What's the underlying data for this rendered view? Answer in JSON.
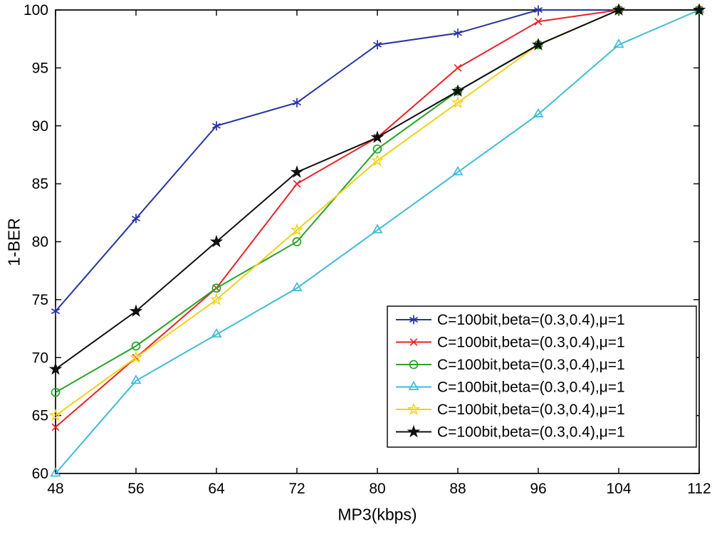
{
  "chart_data": {
    "type": "line",
    "title": "",
    "xlabel": "MP3(kbps)",
    "ylabel": "1-BER",
    "xlim": [
      48,
      112
    ],
    "ylim": [
      60,
      100
    ],
    "x": [
      48,
      56,
      64,
      72,
      80,
      88,
      96,
      104,
      112
    ],
    "xticks": [
      48,
      56,
      64,
      72,
      80,
      88,
      96,
      104,
      112
    ],
    "yticks": [
      60,
      65,
      70,
      75,
      80,
      85,
      90,
      95,
      100
    ],
    "grid": false,
    "legend_position": "lower-right",
    "series": [
      {
        "name": "C=100bit,beta=(0.3,0.4),μ=1",
        "marker": "asterisk",
        "color": "#2733A2",
        "values": [
          74,
          82,
          90,
          92,
          97,
          98,
          100,
          100,
          100
        ]
      },
      {
        "name": "C=100bit,beta=(0.3,0.4),μ=1",
        "marker": "x",
        "color": "#EC2024",
        "values": [
          64,
          70,
          76,
          85,
          89,
          95,
          99,
          100,
          100
        ]
      },
      {
        "name": "C=100bit,beta=(0.3,0.4),μ=1",
        "marker": "circle",
        "color": "#28A228",
        "values": [
          67,
          71,
          76,
          80,
          88,
          93,
          97,
          100,
          100
        ]
      },
      {
        "name": "C=100bit,beta=(0.3,0.4),μ=1",
        "marker": "triangle",
        "color": "#3FBCD8",
        "values": [
          60,
          68,
          72,
          76,
          81,
          86,
          91,
          97,
          100
        ]
      },
      {
        "name": "C=100bit,beta=(0.3,0.4),μ=1",
        "marker": "pentagram",
        "color": "#F3D117",
        "values": [
          65,
          70,
          75,
          81,
          87,
          92,
          97,
          100,
          100
        ]
      },
      {
        "name": "C=100bit,beta=(0.3,0.4),μ=1",
        "marker": "pentagram-filled",
        "color": "#101010",
        "values": [
          69,
          74,
          80,
          86,
          89,
          93,
          97,
          100,
          100
        ]
      }
    ]
  }
}
